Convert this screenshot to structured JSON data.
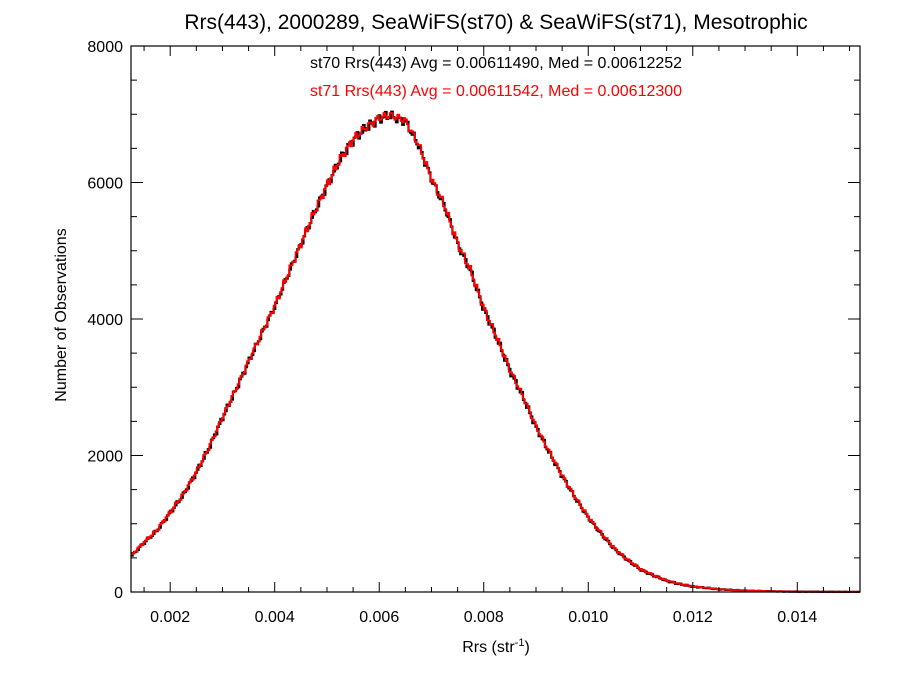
{
  "chart_data": {
    "type": "line",
    "title": "Rrs(443), 2000289, SeaWiFS(st70) & SeaWiFS(st71), Mesotrophic",
    "xlabel_main": "Rrs (str",
    "xlabel_sup": "-1",
    "xlabel_close": ")",
    "ylabel": "Number of Observations",
    "xlim": [
      0.00125,
      0.0152
    ],
    "ylim": [
      0,
      8000
    ],
    "x_ticks": [
      {
        "value": 0.002,
        "label": "0.002"
      },
      {
        "value": 0.004,
        "label": "0.004"
      },
      {
        "value": 0.006,
        "label": "0.006"
      },
      {
        "value": 0.008,
        "label": "0.008"
      },
      {
        "value": 0.01,
        "label": "0.010"
      },
      {
        "value": 0.012,
        "label": "0.012"
      },
      {
        "value": 0.014,
        "label": "0.014"
      }
    ],
    "y_ticks": [
      {
        "value": 0,
        "label": "0"
      },
      {
        "value": 2000,
        "label": "2000"
      },
      {
        "value": 4000,
        "label": "4000"
      },
      {
        "value": 6000,
        "label": "6000"
      },
      {
        "value": 8000,
        "label": "8000"
      }
    ],
    "annotations": [
      {
        "text": "st70 Rrs(443) Avg = 0.00611490, Med = 0.00612252",
        "color": "#000000"
      },
      {
        "text": "st71 Rrs(443) Avg = 0.00611542, Med = 0.00612300",
        "color": "#ff0000"
      }
    ],
    "series": [
      {
        "name": "st70",
        "color": "#000000",
        "x": [
          0.00125,
          0.0015,
          0.00175,
          0.002,
          0.00225,
          0.0025,
          0.00275,
          0.003,
          0.00325,
          0.0035,
          0.00375,
          0.004,
          0.00425,
          0.0045,
          0.00475,
          0.005,
          0.00525,
          0.0055,
          0.00575,
          0.006,
          0.0062,
          0.0065,
          0.00675,
          0.007,
          0.00725,
          0.0075,
          0.00775,
          0.008,
          0.00825,
          0.0085,
          0.00875,
          0.009,
          0.00925,
          0.0095,
          0.00975,
          0.01,
          0.01025,
          0.0105,
          0.01075,
          0.011,
          0.01125,
          0.0115,
          0.01175,
          0.012,
          0.0125,
          0.013,
          0.0135,
          0.014,
          0.0145,
          0.0152
        ],
        "y": [
          520,
          720,
          900,
          1160,
          1420,
          1750,
          2120,
          2550,
          2950,
          3370,
          3780,
          4180,
          4640,
          5090,
          5540,
          5950,
          6330,
          6620,
          6800,
          6940,
          6980,
          6900,
          6550,
          6050,
          5650,
          5100,
          4700,
          4150,
          3720,
          3250,
          2860,
          2420,
          2050,
          1700,
          1380,
          1090,
          850,
          630,
          470,
          330,
          240,
          165,
          115,
          80,
          40,
          20,
          10,
          5,
          3,
          2
        ]
      },
      {
        "name": "st71",
        "color": "#ff0000",
        "x": [
          0.00125,
          0.0015,
          0.00175,
          0.002,
          0.00225,
          0.0025,
          0.00275,
          0.003,
          0.00325,
          0.0035,
          0.00375,
          0.004,
          0.00425,
          0.0045,
          0.00475,
          0.005,
          0.00525,
          0.0055,
          0.00575,
          0.006,
          0.0062,
          0.0065,
          0.00675,
          0.007,
          0.00725,
          0.0075,
          0.00775,
          0.008,
          0.00825,
          0.0085,
          0.00875,
          0.009,
          0.00925,
          0.0095,
          0.00975,
          0.01,
          0.01025,
          0.0105,
          0.01075,
          0.011,
          0.01125,
          0.0115,
          0.01175,
          0.012,
          0.0125,
          0.013,
          0.0135,
          0.014,
          0.0145,
          0.0152
        ],
        "y": [
          530,
          730,
          910,
          1170,
          1430,
          1760,
          2130,
          2560,
          2960,
          3380,
          3790,
          4190,
          4650,
          5100,
          5550,
          5960,
          6340,
          6630,
          6810,
          6950,
          6990,
          6910,
          6560,
          6060,
          5660,
          5110,
          4710,
          4160,
          3730,
          3260,
          2870,
          2430,
          2060,
          1710,
          1390,
          1100,
          860,
          640,
          475,
          335,
          245,
          170,
          118,
          82,
          41,
          21,
          10,
          5,
          3,
          2
        ]
      }
    ]
  }
}
